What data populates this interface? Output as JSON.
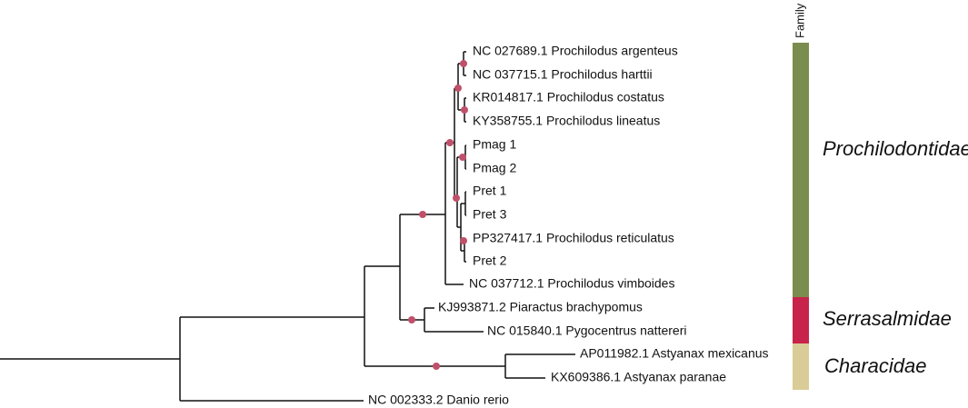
{
  "family_header": "Family",
  "tips": [
    "NC 027689.1 Prochilodus argenteus",
    "NC 037715.1 Prochilodus harttii",
    "KR014817.1 Prochilodus costatus",
    "KY358755.1 Prochilodus lineatus",
    "Pmag 1",
    "Pmag 2",
    "Pret 1",
    "Pret 3",
    "PP327417.1 Prochilodus reticulatus",
    "Pret 2",
    "NC 037712.1 Prochilodus vimboides",
    "KJ993871.2 Piaractus brachypomus",
    "NC 015840.1 Pygocentrus nattereri",
    "AP011982.1 Astyanax mexicanus",
    "KX609386.1 Astyanax paranae",
    "NC 002333.2 Danio rerio"
  ],
  "families": [
    "Prochilodontidae",
    "Serrasalmidae",
    "Characidae"
  ]
}
